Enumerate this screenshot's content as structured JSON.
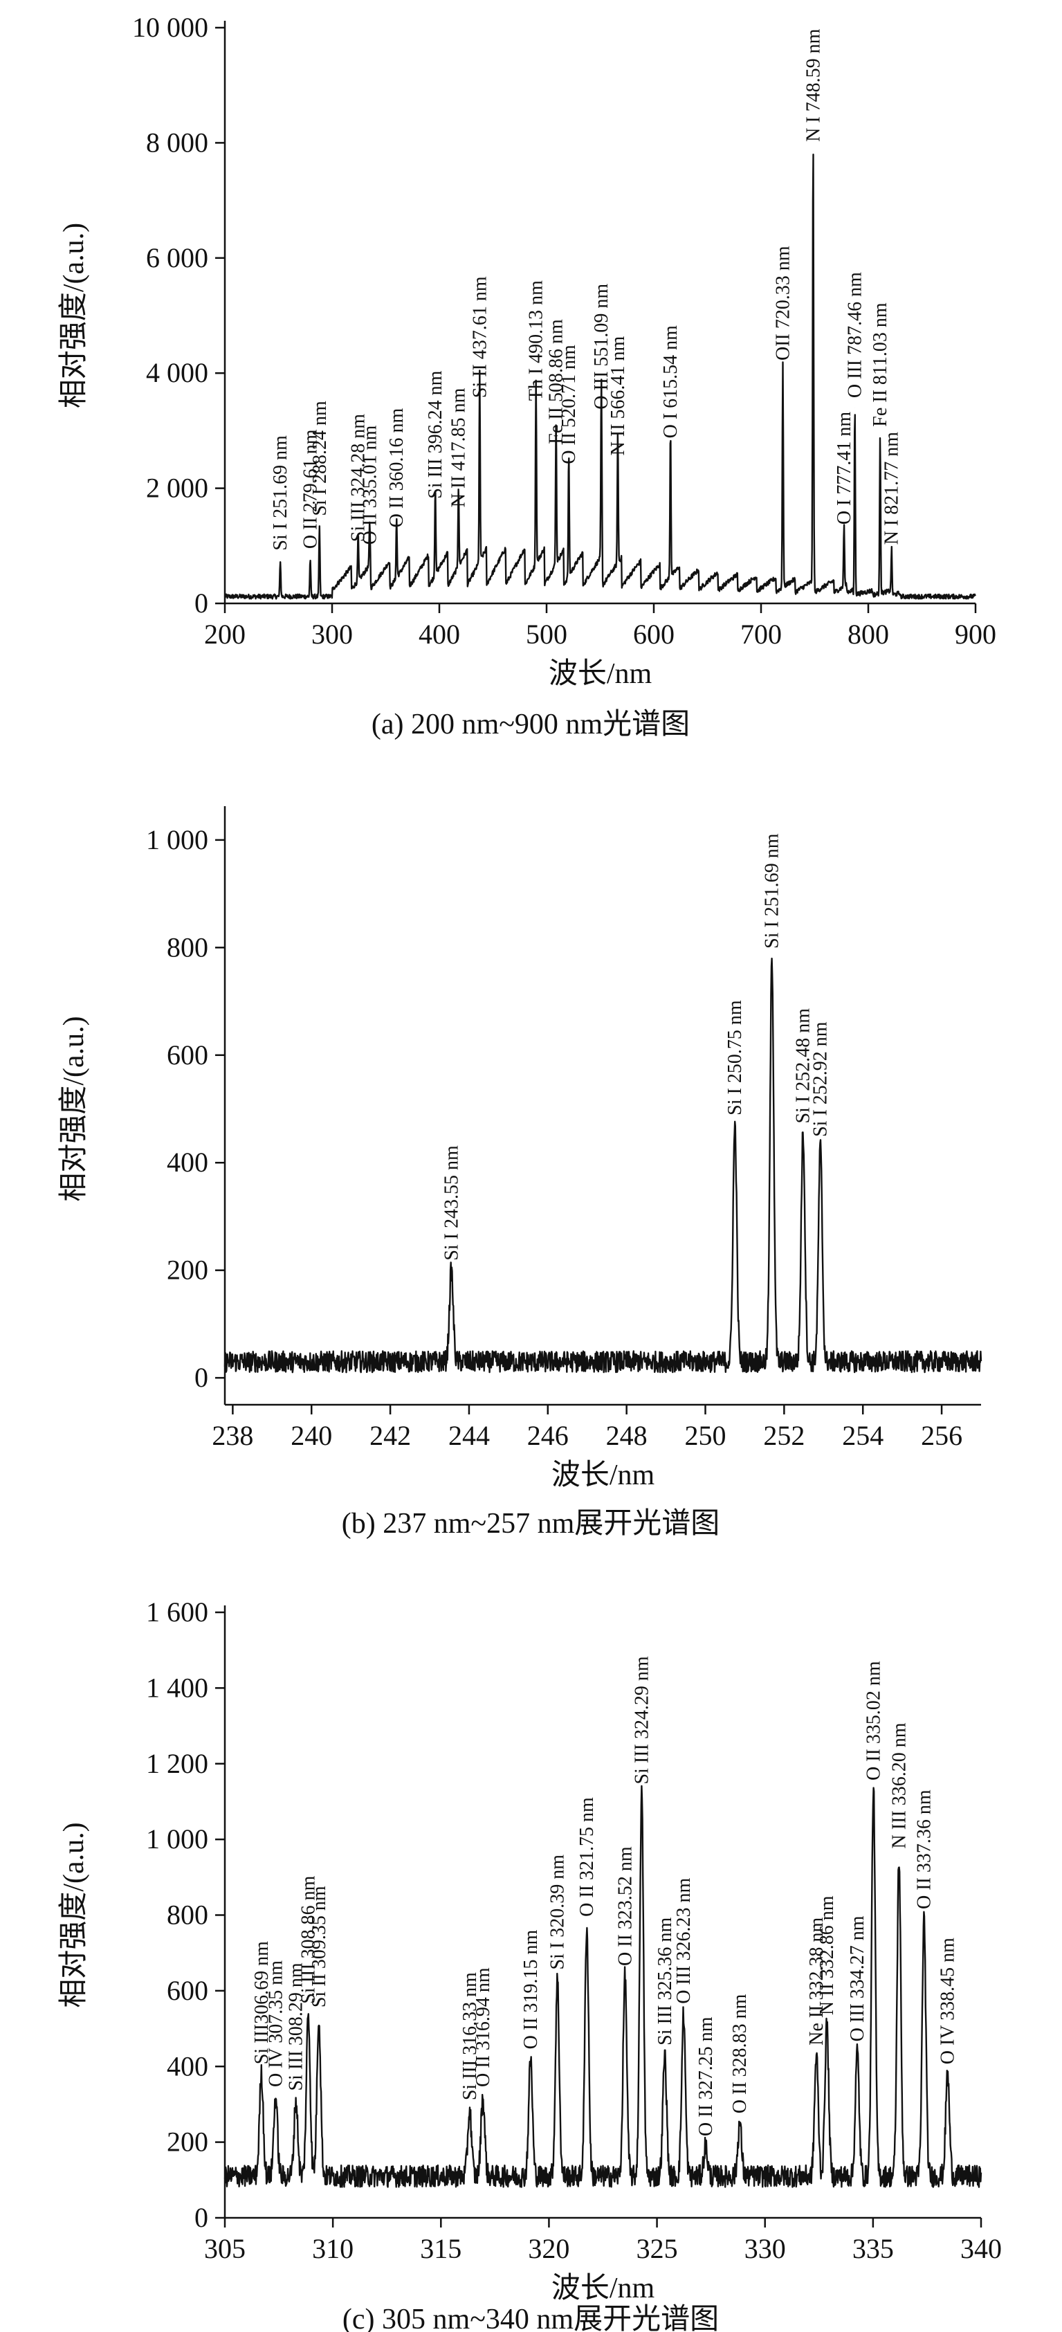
{
  "chart_data": [
    {
      "panel": "a",
      "type": "line",
      "caption": "(a) 200 nm~900 nm光谱图",
      "xlabel": "波长/nm",
      "ylabel": "相对强度/(a.u.)",
      "xlim": [
        200,
        900
      ],
      "ylim": [
        0,
        10000
      ],
      "xticks": [
        200,
        300,
        400,
        500,
        600,
        700,
        800,
        900
      ],
      "xtick_labels": [
        "200",
        "300",
        "400",
        "500",
        "600",
        "700",
        "800",
        "900"
      ],
      "yticks": [
        0,
        2000,
        4000,
        6000,
        8000,
        10000
      ],
      "ytick_labels": [
        "0",
        "2 000",
        "4 000",
        "6 000",
        "8 000",
        "10 000"
      ],
      "baseline": 120,
      "peaks": [
        {
          "x": 251.69,
          "y": 750,
          "label": "Si I 251.69 nm"
        },
        {
          "x": 279.61,
          "y": 780,
          "label": "O II 279.61 nm"
        },
        {
          "x": 288.24,
          "y": 1350,
          "label": "Si I 288.24 nm"
        },
        {
          "x": 324.28,
          "y": 900,
          "label": "Si III 324.28 nm"
        },
        {
          "x": 335.01,
          "y": 850,
          "label": "O II 335.01 nm"
        },
        {
          "x": 360.16,
          "y": 1150,
          "label": "O II 360.16 nm"
        },
        {
          "x": 396.24,
          "y": 1650,
          "label": "Si III 396.24 nm"
        },
        {
          "x": 417.85,
          "y": 1500,
          "label": "N II 417.85 nm"
        },
        {
          "x": 437.61,
          "y": 3400,
          "label": "Si II 437.61 nm"
        },
        {
          "x": 490.13,
          "y": 3350,
          "label": "Th I 490.13 nm"
        },
        {
          "x": 508.86,
          "y": 2600,
          "label": "Fe II 508.86 nm"
        },
        {
          "x": 520.71,
          "y": 2250,
          "label": "O II 520.71 nm"
        },
        {
          "x": 551.09,
          "y": 3200,
          "label": "O III 551.09 nm"
        },
        {
          "x": 566.41,
          "y": 2400,
          "label": "N II 566.41 nm"
        },
        {
          "x": 615.54,
          "y": 2700,
          "label": "O I 615.54 nm"
        },
        {
          "x": 720.33,
          "y": 4050,
          "label": "OII 720.33 nm"
        },
        {
          "x": 748.59,
          "y": 7850,
          "label": "N I 748.59 nm"
        },
        {
          "x": 777.41,
          "y": 1200,
          "label": "O I 777.41 nm"
        },
        {
          "x": 787.46,
          "y": 3400,
          "label": "O III 787.46 nm"
        },
        {
          "x": 811.03,
          "y": 2900,
          "label": "Fe II 811.03 nm"
        },
        {
          "x": 821.77,
          "y": 850,
          "label": "N I 821.77 nm"
        }
      ]
    },
    {
      "panel": "b",
      "type": "line",
      "caption": "(b) 237 nm~257 nm展开光谱图",
      "xlabel": "波长/nm",
      "ylabel": "相对强度/(a.u.)",
      "xlim": [
        237.8,
        257
      ],
      "ylim": [
        -50,
        1050
      ],
      "xticks": [
        238,
        240,
        242,
        244,
        246,
        248,
        250,
        252,
        254,
        256
      ],
      "xtick_labels": [
        "238",
        "240",
        "242",
        "244",
        "246",
        "248",
        "250",
        "252",
        "254",
        "256"
      ],
      "yticks": [
        0,
        200,
        400,
        600,
        800,
        1000
      ],
      "ytick_labels": [
        "0",
        "200",
        "400",
        "600",
        "800",
        "1 000"
      ],
      "baseline": 30,
      "peaks": [
        {
          "x": 243.55,
          "y": 200,
          "label": "Si I 243.55 nm"
        },
        {
          "x": 250.75,
          "y": 470,
          "label": "Si I 250.75 nm"
        },
        {
          "x": 251.69,
          "y": 780,
          "label": "Si I 251.69 nm"
        },
        {
          "x": 252.48,
          "y": 455,
          "label": "Si I 252.48 nm"
        },
        {
          "x": 252.92,
          "y": 430,
          "label": "Si I 252.92 nm"
        }
      ]
    },
    {
      "panel": "c",
      "type": "line",
      "caption": "(c) 305 nm~340 nm展开光谱图",
      "xlabel": "波长/nm",
      "ylabel": "相对强度/(a.u.)",
      "xlim": [
        305,
        340
      ],
      "ylim": [
        0,
        1600
      ],
      "xticks": [
        305,
        310,
        315,
        320,
        325,
        330,
        335,
        340
      ],
      "xtick_labels": [
        "305",
        "310",
        "315",
        "320",
        "325",
        "330",
        "335",
        "340"
      ],
      "yticks": [
        0,
        200,
        400,
        600,
        800,
        1000,
        1200,
        1400,
        1600
      ],
      "ytick_labels": [
        "0",
        "200",
        "400",
        "600",
        "800",
        "1 000",
        "1 200",
        "1 400",
        "1 600"
      ],
      "baseline": 110,
      "peaks": [
        {
          "x": 306.69,
          "y": 380,
          "label": "Si III306.69 nm"
        },
        {
          "x": 307.35,
          "y": 320,
          "label": "O IV 307.35 nm"
        },
        {
          "x": 308.29,
          "y": 310,
          "label": "Si III 308.29 nm"
        },
        {
          "x": 308.86,
          "y": 540,
          "label": "Si III 308.86 nm"
        },
        {
          "x": 309.35,
          "y": 530,
          "label": "Si II 309.35 nm"
        },
        {
          "x": 316.33,
          "y": 285,
          "label": "Si III 316.33 nm"
        },
        {
          "x": 316.94,
          "y": 320,
          "label": "O II 316.94 nm"
        },
        {
          "x": 319.15,
          "y": 420,
          "label": "O II 319.15 nm"
        },
        {
          "x": 320.39,
          "y": 630,
          "label": "Si I 320.39 nm"
        },
        {
          "x": 321.75,
          "y": 770,
          "label": "O II 321.75 nm"
        },
        {
          "x": 323.52,
          "y": 640,
          "label": "O II 323.52 nm"
        },
        {
          "x": 324.29,
          "y": 1120,
          "label": "Si III 324.29 nm"
        },
        {
          "x": 325.36,
          "y": 430,
          "label": "Si III 325.36 nm"
        },
        {
          "x": 326.23,
          "y": 540,
          "label": "O III 326.23 nm"
        },
        {
          "x": 327.25,
          "y": 190,
          "label": "O II 327.25 nm"
        },
        {
          "x": 328.83,
          "y": 250,
          "label": "O II 328.83 nm"
        },
        {
          "x": 332.38,
          "y": 430,
          "label": "Ne II 332.38 nm"
        },
        {
          "x": 332.86,
          "y": 510,
          "label": "N II 332.86 nm"
        },
        {
          "x": 334.27,
          "y": 440,
          "label": "O III 334.27 nm"
        },
        {
          "x": 335.02,
          "y": 1130,
          "label": "O II 335.02 nm"
        },
        {
          "x": 336.2,
          "y": 950,
          "label": "N III 336.20 nm"
        },
        {
          "x": 337.36,
          "y": 790,
          "label": "O II 337.36 nm"
        },
        {
          "x": 338.45,
          "y": 380,
          "label": "O IV 338.45 nm"
        }
      ]
    }
  ]
}
